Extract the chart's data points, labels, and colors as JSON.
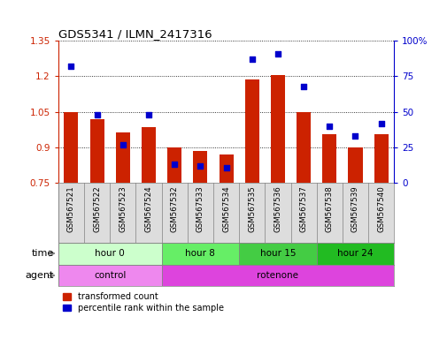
{
  "title": "GDS5341 / ILMN_2417316",
  "samples": [
    "GSM567521",
    "GSM567522",
    "GSM567523",
    "GSM567524",
    "GSM567532",
    "GSM567533",
    "GSM567534",
    "GSM567535",
    "GSM567536",
    "GSM567537",
    "GSM567538",
    "GSM567539",
    "GSM567540"
  ],
  "red_values": [
    1.05,
    1.02,
    0.965,
    0.985,
    0.9,
    0.885,
    0.87,
    1.185,
    1.205,
    1.05,
    0.955,
    0.9,
    0.955
  ],
  "blue_values": [
    82,
    48,
    27,
    48,
    13,
    12,
    11,
    87,
    91,
    68,
    40,
    33,
    42
  ],
  "ylim_left": [
    0.75,
    1.35
  ],
  "ylim_right": [
    0,
    100
  ],
  "yticks_left": [
    0.75,
    0.9,
    1.05,
    1.2,
    1.35
  ],
  "yticks_right": [
    0,
    25,
    50,
    75,
    100
  ],
  "ytick_labels_left": [
    "0.75",
    "0.9",
    "1.05",
    "1.2",
    "1.35"
  ],
  "ytick_labels_right": [
    "0",
    "25",
    "50",
    "75",
    "100%"
  ],
  "bar_color": "#cc2200",
  "dot_color": "#0000cc",
  "bg_color": "#ffffff",
  "grid_color": "#000000",
  "time_groups": [
    {
      "label": "hour 0",
      "start": 0,
      "end": 4,
      "color": "#ccffcc"
    },
    {
      "label": "hour 8",
      "start": 4,
      "end": 7,
      "color": "#66ee66"
    },
    {
      "label": "hour 15",
      "start": 7,
      "end": 10,
      "color": "#44cc44"
    },
    {
      "label": "hour 24",
      "start": 10,
      "end": 13,
      "color": "#22bb22"
    }
  ],
  "agent_groups": [
    {
      "label": "control",
      "start": 0,
      "end": 4,
      "color": "#ee88ee"
    },
    {
      "label": "rotenone",
      "start": 4,
      "end": 13,
      "color": "#dd44dd"
    }
  ],
  "time_row_label": "time",
  "agent_row_label": "agent",
  "legend_red": "transformed count",
  "legend_blue": "percentile rank within the sample",
  "bar_bottom": 0.75
}
